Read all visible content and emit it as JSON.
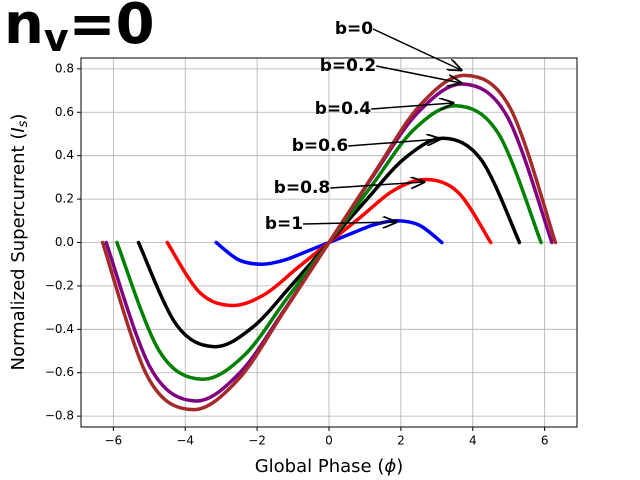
{
  "chart_data": {
    "type": "line",
    "title": "n",
    "title_subscript": "v",
    "title_suffix": "=0",
    "xlabel": "Global Phase (",
    "xlabel_symbol": "ϕ",
    "xlabel_end": ")",
    "ylabel": "Normalized Supercurrent (",
    "ylabel_symbol": "I",
    "ylabel_symbol_subscript": "s",
    "ylabel_end": ")",
    "xlim": [
      -6.9,
      6.9
    ],
    "ylim": [
      -0.85,
      0.85
    ],
    "xticks": [
      {
        "value": -6,
        "label": "−6"
      },
      {
        "value": -4,
        "label": "−4"
      },
      {
        "value": -2,
        "label": "−2"
      },
      0,
      2,
      4,
      6
    ],
    "yticks": [
      {
        "value": -0.8,
        "label": "−0.8"
      },
      {
        "value": -0.6,
        "label": "−0.6"
      },
      {
        "value": -0.4,
        "label": "−0.4"
      },
      {
        "value": -0.2,
        "label": "−0.2"
      },
      {
        "value": 0,
        "label": "0.0"
      },
      0.2,
      0.4,
      0.6,
      0.8
    ],
    "grid": true,
    "series": [
      {
        "name": "b=1",
        "color": "#0000ff",
        "x": [
          -3.14,
          -2.51,
          -1.88,
          -1.26,
          -0.63,
          0,
          0.63,
          1.26,
          1.88,
          2.51,
          3.14
        ],
        "values": [
          0,
          -0.08,
          -0.1,
          -0.082,
          -0.042,
          0,
          0.042,
          0.082,
          0.1,
          0.08,
          0
        ]
      },
      {
        "name": "b=0.8",
        "color": "#ff0000",
        "x": [
          -4.5,
          -3.6,
          -2.7,
          -1.8,
          -0.9,
          0,
          0.9,
          1.8,
          2.7,
          3.6,
          4.5
        ],
        "values": [
          0,
          -0.23,
          -0.29,
          -0.24,
          -0.12,
          0,
          0.12,
          0.24,
          0.29,
          0.23,
          0
        ]
      },
      {
        "name": "b=0.6",
        "color": "#000000",
        "x": [
          -5.3,
          -4.24,
          -3.18,
          -2.12,
          -1.06,
          0,
          1.06,
          2.12,
          3.18,
          4.24,
          5.3
        ],
        "values": [
          0,
          -0.38,
          -0.48,
          -0.39,
          -0.2,
          0,
          0.2,
          0.39,
          0.48,
          0.38,
          0
        ]
      },
      {
        "name": "b=0.4",
        "color": "#008000",
        "x": [
          -5.9,
          -4.72,
          -3.54,
          -2.36,
          -1.18,
          0,
          1.18,
          2.36,
          3.54,
          4.72,
          5.9
        ],
        "values": [
          0,
          -0.5,
          -0.63,
          -0.52,
          -0.26,
          0,
          0.26,
          0.52,
          0.63,
          0.5,
          0
        ]
      },
      {
        "name": "b=0.2",
        "color": "#800080",
        "x": [
          -6.2,
          -4.96,
          -3.72,
          -2.48,
          -1.24,
          0,
          1.24,
          2.48,
          3.72,
          4.96,
          6.2
        ],
        "values": [
          0,
          -0.58,
          -0.73,
          -0.6,
          -0.31,
          0,
          0.31,
          0.6,
          0.73,
          0.58,
          0
        ]
      },
      {
        "name": "b=0",
        "color": "#a52a2a",
        "x": [
          -6.3,
          -5.04,
          -3.78,
          -2.52,
          -1.26,
          0,
          1.26,
          2.52,
          3.78,
          5.04,
          6.3
        ],
        "values": [
          0,
          -0.62,
          -0.77,
          -0.63,
          -0.32,
          0,
          0.32,
          0.63,
          0.77,
          0.62,
          0
        ]
      }
    ]
  }
}
